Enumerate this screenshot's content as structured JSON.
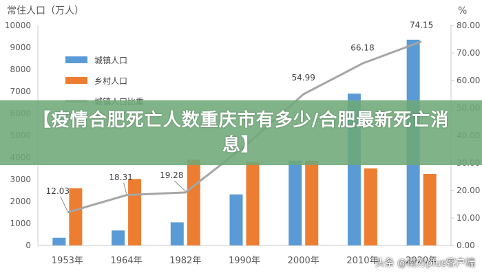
{
  "chart_data": {
    "type": "bar",
    "categories": [
      "1953年",
      "1964年",
      "1982年",
      "1990年",
      "2000年",
      "2010年",
      "2020年"
    ],
    "series": [
      {
        "name": "城镇人口",
        "type": "bar",
        "axis": "left",
        "color": "#5B9BD5",
        "values": [
          350,
          680,
          1050,
          2320,
          3850,
          6900,
          9350
        ]
      },
      {
        "name": "乡村人口",
        "type": "bar",
        "axis": "left",
        "color": "#ED7D31",
        "values": [
          2600,
          3020,
          3900,
          3800,
          3850,
          3500,
          3250
        ]
      },
      {
        "name": "城镇人口比重",
        "type": "line",
        "axis": "right",
        "color": "#A5A5A5",
        "values": [
          12.03,
          18.31,
          19.28,
          36.0,
          54.99,
          66.18,
          74.15
        ]
      }
    ],
    "data_labels": [
      {
        "index": 0,
        "text": "12.03"
      },
      {
        "index": 1,
        "text": "18.31"
      },
      {
        "index": 2,
        "text": "19.28"
      },
      {
        "index": 4,
        "text": "54.99"
      },
      {
        "index": 5,
        "text": "66.18"
      },
      {
        "index": 6,
        "text": "74.15"
      }
    ],
    "ylabel_left": "常住人口（万人）",
    "ylabel_right": "%",
    "ylim_left": [
      0,
      10000
    ],
    "ylim_right": [
      0,
      80
    ],
    "yticks_left": [
      "0",
      "1000",
      "2000",
      "3000",
      "4000",
      "5000",
      "6000",
      "7000",
      "8000",
      "9000",
      "10000"
    ],
    "yticks_right": [
      "0.00",
      "10.00",
      "20.00",
      "30.00",
      "40.00",
      "50.00",
      "60.00",
      "70.00",
      "80.00"
    ],
    "legend_position": "top-left",
    "grid": false
  },
  "banner": {
    "text": "【疫情合肥死亡人数重庆市有多少/合肥最新死亡消息】"
  },
  "watermark": {
    "text": "头条 @南方plus客户端"
  }
}
